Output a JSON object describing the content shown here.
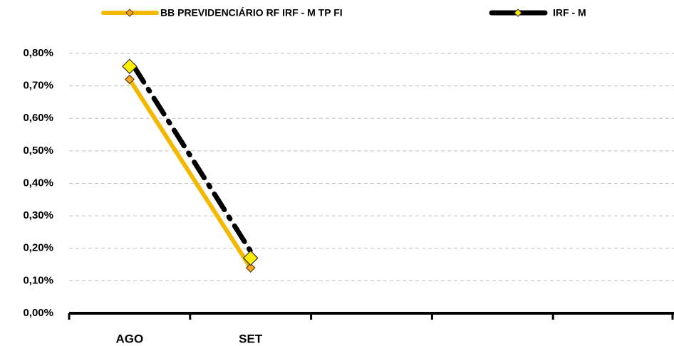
{
  "chart_data": {
    "type": "line",
    "categories": [
      "AGO",
      "SET",
      null,
      null,
      null
    ],
    "series": [
      {
        "name": "BB PREVIDENCIÁRIO RF IRF - M TP FI",
        "color": "#f5b800",
        "values": [
          0.72,
          0.14,
          null,
          null,
          null
        ]
      },
      {
        "name": "IRF - M",
        "color": "#000000",
        "values": [
          0.76,
          0.17,
          null,
          null,
          null
        ]
      }
    ],
    "ylim": [
      0,
      0.8
    ],
    "yticks": [
      {
        "value": 0,
        "label": "0,00%"
      },
      {
        "value": 0.1,
        "label": "0,10%"
      },
      {
        "value": 0.2,
        "label": "0,20%"
      },
      {
        "value": 0.3,
        "label": "0,30%"
      },
      {
        "value": 0.4,
        "label": "0,40%"
      },
      {
        "value": 0.5,
        "label": "0,50%"
      },
      {
        "value": 0.6,
        "label": "0,60%"
      },
      {
        "value": 0.7,
        "label": "0,70%"
      },
      {
        "value": 0.8,
        "label": "0,80%"
      }
    ],
    "grid": true,
    "legend": "top"
  }
}
